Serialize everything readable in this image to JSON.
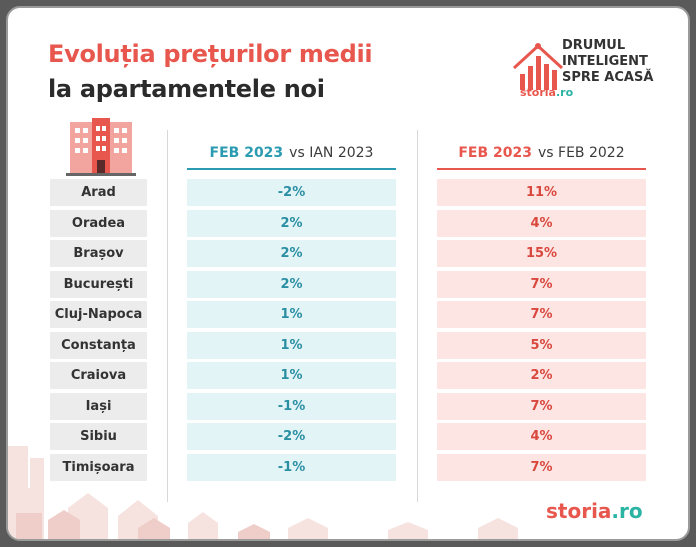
{
  "title": {
    "line1": "Evoluția prețurilor medii",
    "line2": "la apartamentele noi"
  },
  "brand": {
    "tagline": [
      "DRUMUL",
      "INTELIGENT",
      "SPRE ACASĂ"
    ],
    "small_logo": {
      "part1": "storia",
      "part2": ".ro"
    },
    "bottom_logo": {
      "part1": "storia",
      "part2": ".ro"
    }
  },
  "columns": [
    {
      "bold": "FEB 2023",
      "rest": "vs IAN 2023",
      "color": "#2a9bb0"
    },
    {
      "bold": "FEB 2023",
      "rest": "vs FEB 2022",
      "color": "#e8574d"
    }
  ],
  "rows": [
    {
      "city": "Arad",
      "m": "-2%",
      "y": "11%"
    },
    {
      "city": "Oradea",
      "m": "2%",
      "y": "4%"
    },
    {
      "city": "Brașov",
      "m": "2%",
      "y": "15%"
    },
    {
      "city": "București",
      "m": "2%",
      "y": "7%"
    },
    {
      "city": "Cluj-Napoca",
      "m": "1%",
      "y": "7%"
    },
    {
      "city": "Constanța",
      "m": "1%",
      "y": "5%"
    },
    {
      "city": "Craiova",
      "m": "1%",
      "y": "2%"
    },
    {
      "city": "Iași",
      "m": "-1%",
      "y": "7%"
    },
    {
      "city": "Sibiu",
      "m": "-2%",
      "y": "4%"
    },
    {
      "city": "Timișoara",
      "m": "-1%",
      "y": "7%"
    }
  ],
  "colors": {
    "accent_red": "#e8574d",
    "accent_teal": "#2a9bb0",
    "brand_teal": "#2bb3a3"
  }
}
